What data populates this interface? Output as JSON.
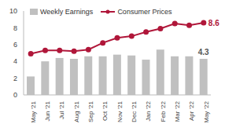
{
  "chart_data": {
    "type": "bar",
    "categories": [
      "May '21",
      "Jun '21",
      "Jul '21",
      "Aug '21",
      "Sep '21",
      "Oct '21",
      "Nov '21",
      "Dec '21",
      "Jan '22",
      "Feb '22",
      "Mar '22",
      "Apr '22",
      "May '22"
    ],
    "series": [
      {
        "name": "Weekly Earnings",
        "type": "bar",
        "color": "#c0c0c0",
        "values": [
          2.2,
          4.0,
          4.4,
          4.3,
          4.6,
          4.6,
          4.8,
          4.7,
          4.2,
          5.4,
          4.6,
          4.6,
          4.3
        ],
        "data_labels": true,
        "value_labels": [
          null,
          null,
          null,
          null,
          null,
          null,
          null,
          null,
          null,
          null,
          null,
          null,
          "4.3"
        ]
      },
      {
        "name": "Consumer Prices",
        "type": "line",
        "color": "#b0173a",
        "marker": "circle",
        "values": [
          4.9,
          5.3,
          5.3,
          5.2,
          5.4,
          6.2,
          6.8,
          7.0,
          7.5,
          7.9,
          8.5,
          8.3,
          8.6
        ],
        "data_labels": true,
        "value_labels": [
          null,
          null,
          null,
          null,
          null,
          null,
          null,
          null,
          null,
          null,
          null,
          null,
          "8.6"
        ]
      }
    ],
    "ylim": [
      0,
      10
    ],
    "yticks": [
      0,
      2,
      4,
      6,
      8,
      10
    ],
    "legend": "top-left"
  }
}
